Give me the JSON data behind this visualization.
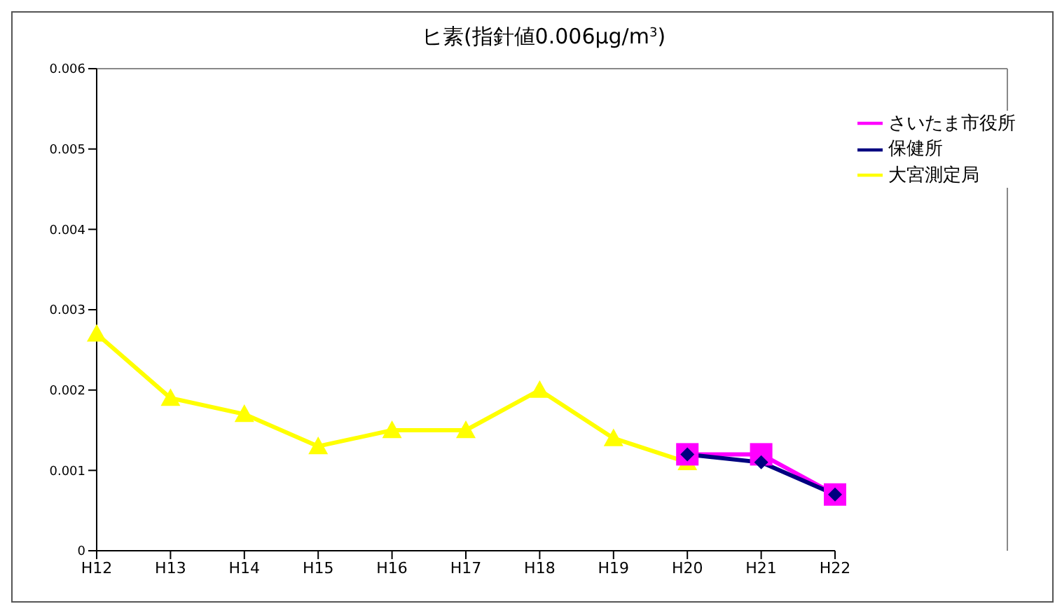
{
  "chart_data": {
    "type": "line",
    "title": "ヒ素(指針値0.006μg/m$^{3}$)",
    "categories": [
      "H12",
      "H13",
      "H14",
      "H15",
      "H16",
      "H17",
      "H18",
      "H19",
      "H20",
      "H21",
      "H22"
    ],
    "series": [
      {
        "name": "大宮測定局",
        "color": "#ffff00",
        "marker": "triangle",
        "values": [
          0.0027,
          0.0019,
          0.0017,
          0.0013,
          0.0015,
          0.0015,
          0.002,
          0.0014,
          0.0011,
          null,
          null
        ]
      },
      {
        "name": "さいたま市役所",
        "color": "#ff00ff",
        "marker": "square",
        "values": [
          null,
          null,
          null,
          null,
          null,
          null,
          null,
          null,
          0.0012,
          0.0012,
          0.0007
        ]
      },
      {
        "name": "保健所",
        "color": "#000080",
        "marker": "diamond",
        "values": [
          null,
          null,
          null,
          null,
          null,
          null,
          null,
          null,
          0.0012,
          0.0011,
          0.0007
        ]
      }
    ],
    "ylim": [
      0,
      0.006
    ],
    "yticks": [
      0,
      0.001,
      0.002,
      0.003,
      0.004,
      0.005,
      0.006
    ],
    "grid": false,
    "legend": "top right",
    "line_style": "solid"
  }
}
